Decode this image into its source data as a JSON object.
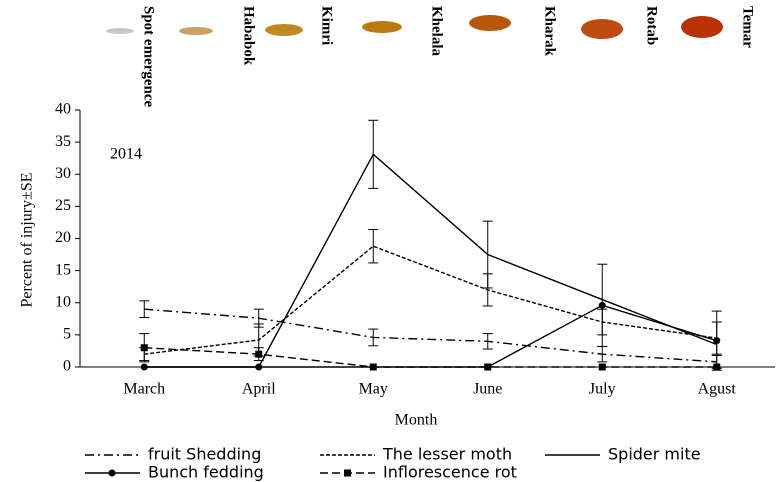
{
  "stages": [
    "Spot emergence",
    "Hababok",
    "Kimri",
    "Khelala",
    "Kharak",
    "Rotab",
    "Temar"
  ],
  "chart_data": {
    "type": "line",
    "annotation": "2014",
    "x_label": "Month",
    "y_label": "Percent of injury±SE",
    "categories": [
      "March",
      "April",
      "May",
      "June",
      "July",
      "Agust"
    ],
    "ylim": [
      0,
      40
    ],
    "yticks": [
      0,
      5,
      10,
      15,
      20,
      25,
      30,
      35,
      40
    ],
    "series": [
      {
        "name": "fruit Shedding",
        "color": "#000000",
        "dash": "9 4 2 4",
        "marker": null,
        "values": [
          9,
          7.6,
          4.6,
          4,
          2,
          0.8
        ],
        "errors": [
          1.3,
          1.4,
          1.3,
          1.2,
          1.2,
          1.0
        ]
      },
      {
        "name": "The lesser moth",
        "color": "#000000",
        "dash": "4 2",
        "marker": null,
        "values": [
          2,
          4.2,
          18.8,
          12,
          7,
          4.5
        ],
        "errors": [
          1.0,
          2.5,
          2.6,
          2.5,
          2.0,
          2.5
        ]
      },
      {
        "name": "Spider mite",
        "color": "#000000",
        "dash": null,
        "marker": null,
        "values": [
          0,
          0,
          33.1,
          17.5,
          10.5,
          3.5
        ],
        "errors": [
          null,
          null,
          5.3,
          5.2,
          null,
          null
        ]
      },
      {
        "name": "Bunch fedding",
        "color": "#000000",
        "dash": null,
        "marker": "circle",
        "values": [
          0,
          0,
          0,
          0,
          9.6,
          4.1
        ],
        "errors": [
          null,
          null,
          null,
          null,
          6.4,
          4.6
        ]
      },
      {
        "name": "Inflorescence rot",
        "color": "#000000",
        "dash": "8 4",
        "marker": "square",
        "values": [
          3,
          2,
          0,
          0,
          0,
          0
        ],
        "errors": [
          2.2,
          1.0,
          null,
          null,
          null,
          null
        ]
      }
    ]
  }
}
